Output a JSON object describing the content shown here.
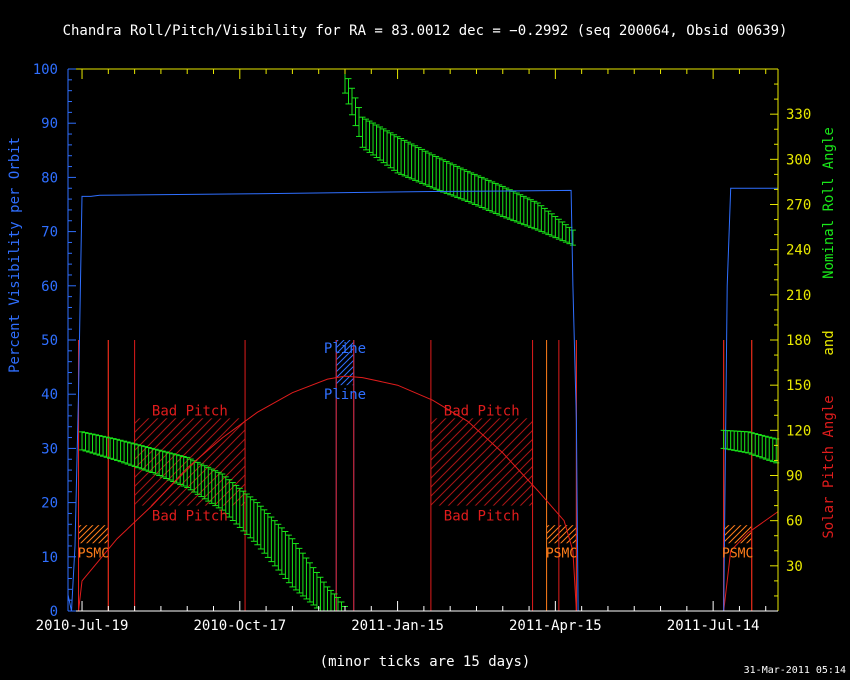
{
  "chart_data": {
    "type": "line",
    "title": "Chandra Roll/Pitch/Visibility for RA = 83.0012 dec = −0.2992 (seq 200064, Obsid 00639)",
    "xlabel": "(minor ticks are 15 days)",
    "ylabel_left": "Percent Visibility per Orbit",
    "ylabel_right_roll": "Nominal Roll Angle",
    "ylabel_right_and": "and",
    "ylabel_right_pitch": "Solar Pitch Angle",
    "x_tick_labels": [
      "2010-Jul-19",
      "2010-Oct-17",
      "2011-Jan-15",
      "2011-Apr-15",
      "2011-Jul-14"
    ],
    "x_ticks_days": [
      0,
      90,
      180,
      270,
      360
    ],
    "xlim_days": [
      -8,
      397
    ],
    "y_left_ticks": [
      0,
      10,
      20,
      30,
      40,
      50,
      60,
      70,
      80,
      90,
      100
    ],
    "ylim_left": [
      0,
      100
    ],
    "y_right_ticks": [
      30,
      60,
      90,
      120,
      150,
      180,
      210,
      240,
      270,
      300,
      330
    ],
    "ylim_right": [
      0,
      360
    ],
    "grid": false,
    "visibility": {
      "name": "Percent Visibility per Orbit",
      "color": "#2f6fff",
      "x_days": [
        -8,
        -6,
        -4,
        -2,
        0,
        5,
        10,
        40,
        100,
        150,
        200,
        250,
        279,
        280,
        282,
        283,
        366,
        368,
        370,
        397
      ],
      "y": [
        3,
        0,
        12,
        40,
        76.5,
        76.5,
        76.7,
        76.8,
        77,
        77.2,
        77.4,
        77.5,
        77.6,
        60,
        35,
        0,
        0,
        60,
        78,
        78
      ]
    },
    "roll": {
      "name": "Nominal Roll Angle",
      "color": "#19e619",
      "segments": [
        {
          "x_days": [
            0,
            20,
            40,
            60,
            80,
            100,
            120,
            140,
            146,
            150
          ],
          "center": [
            113,
            107,
            100,
            92,
            79,
            58,
            32,
            6,
            3,
            0
          ],
          "half_range": [
            6,
            7,
            8,
            10,
            12,
            14,
            16,
            10,
            6,
            3
          ]
        },
        {
          "x_days": [
            150,
            160,
            180,
            200,
            220,
            240,
            260,
            280
          ],
          "center": [
            352,
            318,
            303,
            292,
            282,
            272,
            262,
            248
          ],
          "half_range": [
            8,
            10,
            12,
            11,
            10,
            10,
            9,
            5
          ]
        },
        {
          "x_days": [
            366,
            380,
            397
          ],
          "center": [
            114,
            112,
            106
          ],
          "half_range": [
            6,
            7,
            8
          ]
        }
      ]
    },
    "pitch": {
      "name": "Solar Pitch Angle",
      "color": "#e01c1c",
      "x_days": [
        -2,
        0,
        20,
        40,
        60,
        80,
        100,
        120,
        140,
        150,
        160,
        180,
        200,
        220,
        240,
        260,
        275,
        280,
        282,
        366,
        370,
        380,
        397
      ],
      "y": [
        0,
        20,
        48,
        70,
        95,
        115,
        132,
        145,
        154,
        156,
        155,
        150,
        140,
        126,
        105,
        80,
        60,
        40,
        0,
        0,
        40,
        52,
        66
      ]
    },
    "red_lines_days": [
      -2,
      15,
      30,
      93,
      145,
      155,
      199,
      257,
      272,
      282,
      366,
      382
    ],
    "bad_pitch_zones": [
      {
        "label": "Bad Pitch",
        "x_days": [
          30,
          93
        ]
      },
      {
        "label": "Bad Pitch",
        "x_days": [
          199,
          257
        ]
      }
    ],
    "bad_pitch_range_deg": [
      70,
      128
    ],
    "pline_zone": {
      "label": "Pline",
      "x_days": [
        145,
        155
      ],
      "y_range_deg": [
        150,
        180
      ]
    },
    "psmc_zones": [
      {
        "label": "PSMC",
        "x_days": [
          -2,
          15
        ]
      },
      {
        "label": "PSMC",
        "x_days": [
          265,
          282
        ]
      },
      {
        "label": "PSMC",
        "x_days": [
          366,
          382
        ]
      }
    ],
    "psmc_range_deg": [
      45,
      57
    ]
  },
  "footer": {
    "timestamp": "31-Mar-2011 05:14"
  }
}
